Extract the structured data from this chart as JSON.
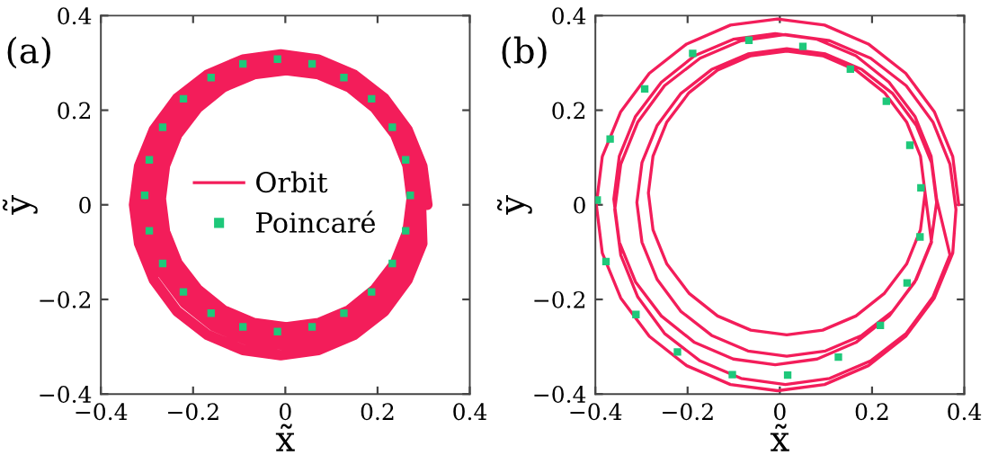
{
  "chart_data": [
    {
      "type": "line",
      "xlabel": "x̃",
      "ylabel": "ỹ",
      "annotations": [
        "(a)"
      ],
      "legend": "center",
      "xlim": [
        -0.4,
        0.4
      ],
      "ylim": [
        -0.4,
        0.4
      ],
      "xticks": [
        -0.4,
        -0.2,
        0,
        0.2,
        0.4
      ],
      "yticks": [
        -0.4,
        -0.2,
        0,
        0.2,
        0.4
      ],
      "series": [
        {
          "name": "Orbit",
          "type": "line",
          "color": "#f31d5a",
          "line_style": "solid",
          "x": [
            0.308,
            0.297,
            0.265,
            0.215,
            0.149,
            0.072,
            -0.01,
            -0.092,
            -0.169,
            -0.235,
            -0.285,
            -0.317,
            -0.328,
            -0.317,
            -0.285,
            -0.235,
            -0.169,
            -0.092,
            -0.01,
            0.072,
            0.149,
            0.215,
            0.265,
            0.297,
            0.294,
            0.284,
            0.254,
            0.206,
            0.144,
            0.072,
            -0.006,
            -0.084,
            -0.156,
            -0.218,
            -0.266,
            -0.296,
            -0.306,
            -0.296,
            -0.266,
            -0.218,
            -0.156,
            -0.084,
            -0.006,
            0.072,
            0.144,
            0.206,
            0.254,
            0.284,
            0.283,
            0.273,
            0.245,
            0.199,
            0.141,
            0.072,
            -0.002,
            -0.076,
            -0.145,
            -0.203,
            -0.249,
            -0.277,
            -0.287,
            -0.277,
            -0.249,
            -0.203,
            -0.145,
            -0.076,
            -0.002,
            0.072,
            0.141,
            0.199,
            0.245,
            0.273,
            0.274,
            0.265,
            0.238,
            0.194,
            0.138,
            0.072,
            0.002,
            -0.068,
            -0.134,
            -0.19,
            -0.234,
            -0.261,
            -0.27,
            -0.261,
            -0.234,
            -0.19,
            -0.134,
            -0.068,
            0.002,
            0.072,
            0.138,
            0.194,
            0.238,
            0.265,
            0.274
          ],
          "values": [
            0,
            0.082,
            0.159,
            0.225,
            0.275,
            0.307,
            0.318,
            0.307,
            0.275,
            0.225,
            0.159,
            0.082,
            0,
            -0.082,
            -0.159,
            -0.225,
            -0.275,
            -0.307,
            -0.318,
            -0.307,
            -0.275,
            -0.225,
            -0.159,
            -0.082,
            0.004,
            0.082,
            0.154,
            0.216,
            0.264,
            0.294,
            0.304,
            0.294,
            0.264,
            0.216,
            0.154,
            0.082,
            0.004,
            -0.074,
            -0.146,
            -0.208,
            -0.256,
            -0.286,
            -0.296,
            -0.286,
            -0.256,
            -0.208,
            -0.146,
            -0.074,
            0.009,
            0.083,
            0.152,
            0.21,
            0.256,
            0.284,
            0.294,
            0.284,
            0.256,
            0.21,
            0.152,
            0.083,
            0.009,
            -0.065,
            -0.134,
            -0.192,
            -0.238,
            -0.266,
            -0.276,
            -0.266,
            -0.238,
            -0.192,
            -0.134,
            -0.065,
            0.013,
            0.083,
            0.149,
            0.205,
            0.249,
            0.276,
            0.285,
            0.276,
            0.249,
            0.205,
            0.149,
            0.083,
            0.013,
            -0.057,
            -0.123,
            -0.179,
            -0.223,
            -0.25,
            -0.259,
            -0.25,
            -0.223,
            -0.179,
            -0.123,
            -0.057,
            0.013
          ]
        },
        {
          "name": "Poincaré",
          "type": "scatter",
          "color": "#1ec87a",
          "marker": "square",
          "x": [
            0.271,
            0.261,
            0.232,
            0.187,
            0.127,
            0.058,
            -0.017,
            -0.092,
            -0.161,
            -0.221,
            -0.266,
            -0.295,
            -0.305,
            -0.295,
            -0.266,
            -0.221,
            -0.161,
            -0.092,
            -0.017,
            0.058,
            0.127,
            0.187,
            0.232,
            0.261
          ],
          "values": [
            0.02,
            0.095,
            0.164,
            0.224,
            0.269,
            0.298,
            0.308,
            0.298,
            0.269,
            0.224,
            0.164,
            0.095,
            0.02,
            -0.055,
            -0.124,
            -0.184,
            -0.229,
            -0.258,
            -0.268,
            -0.258,
            -0.229,
            -0.184,
            -0.124,
            -0.055
          ]
        }
      ]
    },
    {
      "type": "line",
      "xlabel": "x̃",
      "ylabel": "ỹ",
      "annotations": [
        "(b)"
      ],
      "xlim": [
        -0.4,
        0.4
      ],
      "ylim": [
        -0.4,
        0.4
      ],
      "xticks": [
        -0.4,
        -0.2,
        0,
        0.2,
        0.4
      ],
      "yticks": [
        -0.4,
        -0.2,
        0,
        0.2,
        0.4
      ],
      "series": [
        {
          "type": "line",
          "color": "#f31d5a",
          "line_style": "solid",
          "x": [
            0.388,
            0.375,
            0.335,
            0.273,
            0.192,
            0.097,
            -0.005,
            -0.107,
            -0.202,
            -0.283,
            -0.345,
            -0.385,
            -0.398,
            -0.385,
            -0.345,
            -0.283,
            -0.202,
            -0.107,
            -0.005,
            0.097,
            0.192,
            0.273,
            0.335,
            0.375,
            0.382,
            0.369,
            0.332,
            0.274,
            0.197,
            0.108,
            0.012,
            -0.084,
            -0.173,
            -0.25,
            -0.308,
            -0.345,
            -0.358,
            -0.345,
            -0.308,
            -0.25,
            -0.173,
            -0.084,
            0.012,
            0.108,
            0.197,
            0.274,
            0.332,
            0.369,
            0.34,
            0.328,
            0.293,
            0.237,
            0.165,
            0.081,
            -0.01,
            -0.101,
            -0.185,
            -0.257,
            -0.313,
            -0.348,
            -0.36,
            -0.348,
            -0.313,
            -0.257,
            -0.185,
            -0.101,
            -0.01,
            0.081,
            0.165,
            0.237,
            0.293,
            0.328,
            0.34,
            0.329,
            0.296,
            0.245,
            0.178,
            0.099,
            0.015,
            -0.069,
            -0.148,
            -0.215,
            -0.266,
            -0.299,
            -0.31,
            -0.299,
            -0.266,
            -0.215,
            -0.148,
            -0.069,
            0.015,
            0.099,
            0.178,
            0.245,
            0.296,
            0.329,
            0.315,
            0.305,
            0.275,
            0.227,
            0.165,
            0.093,
            0.015,
            -0.063,
            -0.135,
            -0.197,
            -0.245,
            -0.275,
            -0.285,
            -0.275,
            -0.245,
            -0.197,
            -0.135,
            -0.063,
            0.015,
            0.093,
            0.165,
            0.227,
            0.275,
            0.305,
            0.315
          ],
          "values": [
            0,
            0.102,
            0.197,
            0.278,
            0.34,
            0.38,
            0.393,
            0.38,
            0.34,
            0.278,
            0.197,
            0.102,
            0,
            -0.102,
            -0.197,
            -0.278,
            -0.34,
            -0.38,
            -0.393,
            -0.38,
            -0.34,
            -0.278,
            -0.197,
            -0.102,
            -0.01,
            0.086,
            0.175,
            0.252,
            0.31,
            0.347,
            0.36,
            0.347,
            0.31,
            0.252,
            0.175,
            0.086,
            -0.01,
            -0.106,
            -0.195,
            -0.272,
            -0.33,
            -0.367,
            -0.38,
            -0.367,
            -0.33,
            -0.272,
            -0.195,
            -0.106,
            0.012,
            0.103,
            0.187,
            0.259,
            0.315,
            0.35,
            0.362,
            0.35,
            0.315,
            0.259,
            0.187,
            0.103,
            0.012,
            -0.079,
            -0.163,
            -0.235,
            -0.291,
            -0.326,
            -0.338,
            -0.326,
            -0.291,
            -0.235,
            -0.163,
            -0.079,
            0.005,
            0.089,
            0.168,
            0.235,
            0.286,
            0.319,
            0.33,
            0.319,
            0.286,
            0.235,
            0.168,
            0.089,
            0.005,
            -0.079,
            -0.158,
            -0.225,
            -0.276,
            -0.309,
            -0.32,
            -0.309,
            -0.276,
            -0.225,
            -0.158,
            -0.079,
            0.025,
            0.103,
            0.175,
            0.237,
            0.285,
            0.315,
            0.325,
            0.315,
            0.285,
            0.237,
            0.175,
            0.103,
            0.025,
            -0.053,
            -0.125,
            -0.187,
            -0.235,
            -0.265,
            -0.275,
            -0.265,
            -0.235,
            -0.187,
            -0.125,
            -0.053,
            0.025
          ]
        },
        {
          "type": "scatter",
          "color": "#1ec87a",
          "marker": "square",
          "x": [
            -0.067,
            -0.189,
            -0.293,
            -0.368,
            -0.396,
            -0.377,
            -0.312,
            -0.222,
            -0.103,
            0.017,
            0.127,
            0.218,
            0.276,
            0.304,
            0.306,
            0.282,
            0.231,
            0.153,
            0.05
          ],
          "values": [
            0.348,
            0.32,
            0.245,
            0.139,
            0.01,
            -0.12,
            -0.232,
            -0.311,
            -0.359,
            -0.36,
            -0.322,
            -0.255,
            -0.165,
            -0.068,
            0.036,
            0.126,
            0.219,
            0.287,
            0.335
          ]
        }
      ]
    }
  ]
}
